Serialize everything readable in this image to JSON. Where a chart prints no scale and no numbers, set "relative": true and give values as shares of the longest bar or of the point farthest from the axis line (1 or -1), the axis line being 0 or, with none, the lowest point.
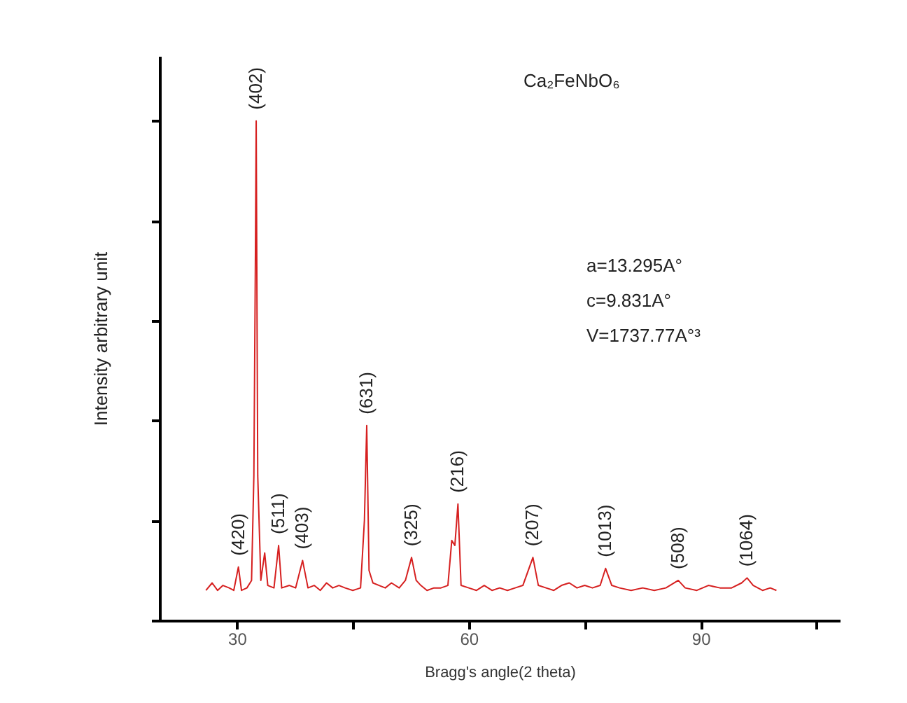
{
  "chart_data": {
    "type": "line",
    "relative": true,
    "xlabel": "Bragg's angle(2 theta)",
    "ylabel": "Intensity arbitrary unit",
    "xlim": [
      20,
      108
    ],
    "xticks": [
      30,
      {
        "value": 45,
        "label": null
      },
      60,
      {
        "value": 75,
        "label": null
      },
      90,
      {
        "value": 105,
        "label": null
      }
    ],
    "tick_labels": "x",
    "series": [
      {
        "color": "#d62020",
        "x": [
          26,
          26.8,
          27.5,
          28.2,
          29,
          29.6,
          30.2,
          30.6,
          31.3,
          31.9,
          32.2,
          32.4,
          32.5,
          32.7,
          33.1,
          33.6,
          34,
          34.8,
          35.4,
          35.8,
          36.8,
          37.6,
          38.5,
          39.2,
          40,
          40.8,
          41.6,
          42.4,
          43.2,
          44,
          45,
          46,
          46.5,
          46.8,
          47.1,
          47.6,
          48.4,
          49.2,
          50,
          51,
          51.8,
          52.6,
          53.2,
          53.8,
          54.6,
          55.5,
          56.4,
          57.3,
          57.8,
          58.2,
          58.6,
          59,
          60,
          61,
          62,
          63,
          64,
          65,
          66,
          67,
          68.3,
          69,
          70,
          71,
          72,
          73,
          74,
          75,
          76,
          77,
          77.7,
          78.5,
          79.5,
          81,
          82.5,
          84,
          85.5,
          87.1,
          88,
          89.5,
          91,
          92.5,
          94,
          95.3,
          96,
          96.8,
          98,
          99,
          99.8
        ],
        "values": [
          0.06,
          0.075,
          0.06,
          0.07,
          0.065,
          0.06,
          0.107,
          0.06,
          0.065,
          0.08,
          0.29,
          0.73,
          1,
          0.29,
          0.08,
          0.135,
          0.07,
          0.065,
          0.15,
          0.065,
          0.07,
          0.065,
          0.12,
          0.065,
          0.07,
          0.06,
          0.075,
          0.065,
          0.07,
          0.065,
          0.06,
          0.065,
          0.2,
          0.39,
          0.1,
          0.075,
          0.07,
          0.065,
          0.075,
          0.065,
          0.08,
          0.126,
          0.08,
          0.07,
          0.06,
          0.065,
          0.065,
          0.07,
          0.16,
          0.15,
          0.233,
          0.07,
          0.065,
          0.06,
          0.07,
          0.06,
          0.065,
          0.06,
          0.065,
          0.07,
          0.126,
          0.07,
          0.065,
          0.06,
          0.07,
          0.075,
          0.065,
          0.07,
          0.065,
          0.07,
          0.104,
          0.07,
          0.065,
          0.06,
          0.065,
          0.06,
          0.065,
          0.08,
          0.065,
          0.06,
          0.07,
          0.065,
          0.065,
          0.075,
          0.085,
          0.07,
          0.06,
          0.065,
          0.06
        ]
      }
    ],
    "annotations": [
      "Ca₂FeNbO₆",
      "a=13.295A°",
      "c=9.831A°",
      "V=1737.77A°³",
      {
        "text": "(420)",
        "x": 30.2,
        "y": 0.107
      },
      {
        "text": "(402)",
        "x": 32.5,
        "y": 1
      },
      {
        "text": "(511)",
        "x": 35.4,
        "y": 0.15
      },
      {
        "text": "(403)",
        "x": 38.5,
        "y": 0.12
      },
      {
        "text": "(631)",
        "x": 46.8,
        "y": 0.39
      },
      {
        "text": "(325)",
        "x": 52.6,
        "y": 0.126
      },
      {
        "text": "(216)",
        "x": 58.6,
        "y": 0.233
      },
      {
        "text": "(207)",
        "x": 68.3,
        "y": 0.126
      },
      {
        "text": "(1013)",
        "x": 77.7,
        "y": 0.104
      },
      {
        "text": "(508)",
        "x": 87.1,
        "y": 0.08
      },
      {
        "text": "(1064)",
        "x": 96,
        "y": 0.085
      }
    ]
  }
}
